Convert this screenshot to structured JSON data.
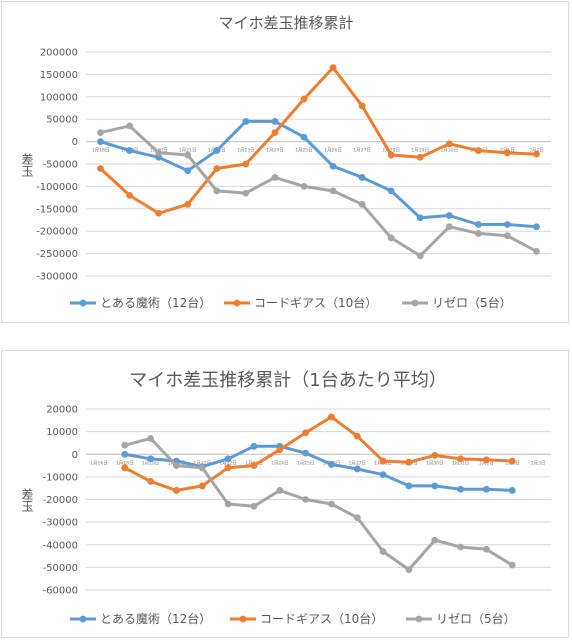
{
  "chart_data": [
    {
      "type": "line",
      "title": "マイホ差玉推移累計",
      "ylabel": "差玉",
      "xlabel": "",
      "ylim": [
        -300000,
        200000
      ],
      "y_ticks": [
        "200000",
        "150000",
        "100000",
        "50000",
        "0",
        "-50000",
        "-100000",
        "-150000",
        "-200000",
        "-250000",
        "-300000"
      ],
      "grid": true,
      "legend_position": "bottom",
      "categories": [
        "1月18日",
        "1月19日",
        "1月20日",
        "1月21日",
        "1月22日",
        "1月23日",
        "1月24日",
        "1月25日",
        "1月26日",
        "1月27日",
        "1月28日",
        "1月29日",
        "1月30日",
        "1月31日",
        "2月1日",
        "2月2日"
      ],
      "series": [
        {
          "name": "とある魔術（12台）",
          "color": "#5b9bd5",
          "values": [
            0,
            -20000,
            -35000,
            -65000,
            -20000,
            45000,
            45000,
            10000,
            -55000,
            -80000,
            -110000,
            -170000,
            -165000,
            -185000,
            -185000,
            -190000
          ]
        },
        {
          "name": "コードギアス（10台）",
          "color": "#ed7d31",
          "values": [
            -60000,
            -120000,
            -160000,
            -140000,
            -60000,
            -50000,
            20000,
            95000,
            165000,
            80000,
            -30000,
            -35000,
            -5000,
            -20000,
            -25000,
            -28000
          ]
        },
        {
          "name": "リゼロ（5台）",
          "color": "#a5a5a5",
          "values": [
            20000,
            35000,
            -25000,
            -30000,
            -110000,
            -115000,
            -80000,
            -100000,
            -110000,
            -140000,
            -215000,
            -255000,
            -190000,
            -205000,
            -210000,
            -245000
          ]
        }
      ]
    },
    {
      "type": "line",
      "title": "マイホ差玉推移累計（1台あたり平均）",
      "ylabel": "差玉",
      "xlabel": "",
      "ylim": [
        -60000,
        20000
      ],
      "y_ticks": [
        "20000",
        "10000",
        "0",
        "-10000",
        "-20000",
        "-30000",
        "-40000",
        "-50000",
        "-60000"
      ],
      "grid": true,
      "legend_position": "bottom",
      "categories": [
        "1月16日",
        "1月18日",
        "1月19日",
        "1月20日",
        "1月21日",
        "1月22日",
        "1月23日",
        "1月24日",
        "1月25日",
        "1月26日",
        "1月27日",
        "1月28日",
        "1月29日",
        "1月30日",
        "1月31日",
        "2月1日",
        "2月2日",
        "2月3日"
      ],
      "series": [
        {
          "name": "とある魔術（12台）",
          "color": "#5b9bd5",
          "values": [
            null,
            0,
            -2000,
            -3000,
            -5500,
            -2000,
            3500,
            3500,
            500,
            -4500,
            -6500,
            -9000,
            -14000,
            -14000,
            -15500,
            -15500,
            -16000,
            null
          ]
        },
        {
          "name": "コードギアス（10台）",
          "color": "#ed7d31",
          "values": [
            null,
            -6000,
            -12000,
            -16000,
            -14000,
            -6000,
            -5000,
            2000,
            9500,
            16500,
            8000,
            -3000,
            -3500,
            -500,
            -2000,
            -2500,
            -3000,
            null
          ]
        },
        {
          "name": "リゼロ（5台）",
          "color": "#a5a5a5",
          "values": [
            null,
            4000,
            7000,
            -5000,
            -6000,
            -22000,
            -23000,
            -16000,
            -20000,
            -22000,
            -28000,
            -43000,
            -51000,
            -38000,
            -41000,
            -42000,
            -49000,
            null
          ]
        }
      ]
    }
  ]
}
